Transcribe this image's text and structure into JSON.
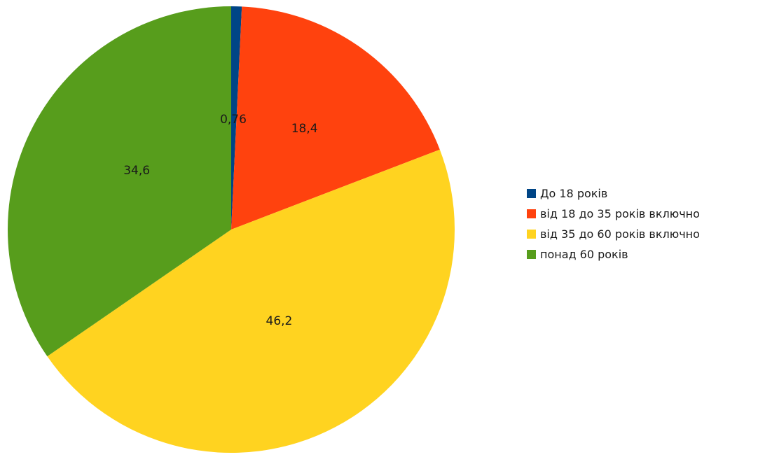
{
  "chart_data": {
    "type": "pie",
    "title": "",
    "categories": [
      "До 18 років",
      "від 18 до 35 років включно",
      "від 35 до 60 років включно",
      "понад 60 років"
    ],
    "values": [
      0.76,
      18.4,
      46.2,
      34.6
    ],
    "value_labels": [
      "0,76",
      "18,4",
      "46,2",
      "34,6"
    ],
    "colors": [
      "#004586",
      "#ff420e",
      "#ffd320",
      "#579d1c"
    ],
    "start_angle": "top (12 o'clock)",
    "direction": "clockwise",
    "legend_position": "right"
  }
}
